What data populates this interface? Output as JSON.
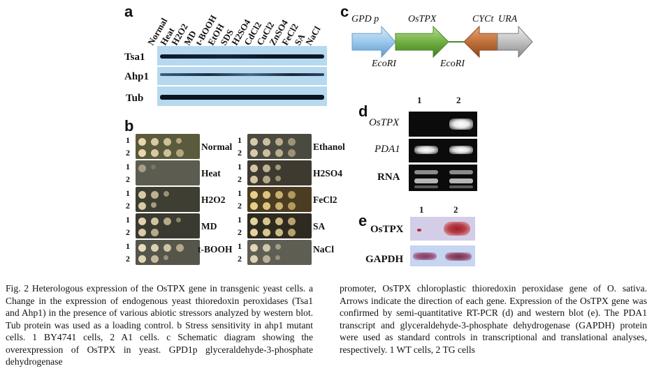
{
  "panel_a": {
    "label": "a",
    "lanes": [
      "Normal",
      "Heat",
      "H2O2",
      "MD",
      "t-BOOH",
      "EtOH",
      "SDS",
      "H2SO4",
      "CdCl2",
      "CuCl2",
      "ZnSO4",
      "FeCl2",
      "SA",
      "NaCl"
    ],
    "rows": [
      "Tsa1",
      "Ahp1",
      "Tub"
    ]
  },
  "panel_b": {
    "label": "b",
    "row_numbers": [
      "1",
      "2"
    ],
    "left_conditions": [
      "Normal",
      "Heat",
      "H2O2",
      "MD",
      "t-BOOH"
    ],
    "right_conditions": [
      "Ethanol",
      "H2SO4",
      "FeCl2",
      "SA",
      "NaCl"
    ]
  },
  "panel_c": {
    "label": "c",
    "genes": [
      "GPD p",
      "OsTPX",
      "CYCt",
      "URA"
    ],
    "sites": [
      "EcoRI",
      "EcoRI"
    ],
    "colors": {
      "gpd": "#9cc8ec",
      "ostpx": "#72b043",
      "cyct": "#c0703b",
      "ura": "#bfbfbf"
    }
  },
  "panel_d": {
    "label": "d",
    "lanes": [
      "1",
      "2"
    ],
    "rows": [
      "OsTPX",
      "PDA1",
      "RNA"
    ]
  },
  "panel_e": {
    "label": "e",
    "lanes": [
      "1",
      "2"
    ],
    "rows": [
      "OsTPX",
      "GAPDH"
    ]
  },
  "caption": {
    "col1": "Fig. 2  Heterologous expression of the OsTPX gene in transgenic yeast cells. a Change in the expression of endogenous yeast thioredoxin peroxidases (Tsa1 and Ahp1) in the presence of various abiotic stressors analyzed by western blot. Tub protein was used as a loading control. b Stress sensitivity in ahp1 mutant cells. 1 BY4741 cells, 2 A1 cells. c Schematic diagram showing the overexpression of OsTPX in yeast. GPD1p glyceraldehyde-3-phosphate dehydrogenase",
    "col2": "promoter, OsTPX chloroplastic thioredoxin peroxidase gene of O. sativa. Arrows indicate the direction of each gene. Expression of the OsTPX gene was confirmed by semi-quantitative RT-PCR (d) and western blot (e). The PDA1 transcript and glyceraldehyde-3-phosphate dehydrogenase (GAPDH) protein were used as standard controls in transcriptional and translational analyses, respectively. 1 WT cells, 2 TG cells"
  }
}
